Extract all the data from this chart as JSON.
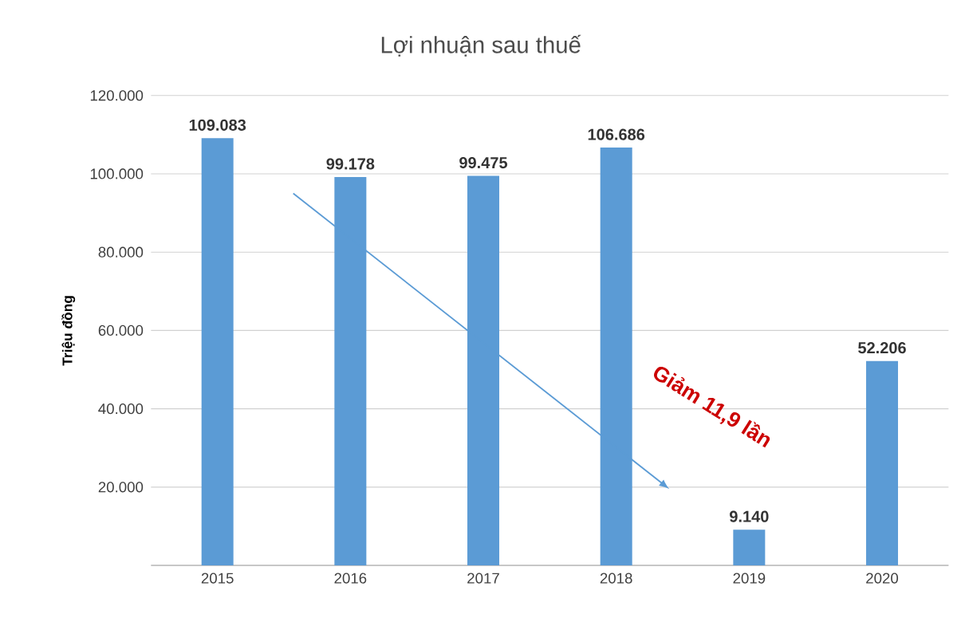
{
  "chart_data": {
    "type": "bar",
    "title": "Lợi nhuận sau thuế",
    "ylabel": "Triệu đồng",
    "categories": [
      "2015",
      "2016",
      "2017",
      "2018",
      "2019",
      "2020"
    ],
    "values": [
      109083,
      99178,
      99475,
      106686,
      9140,
      52206
    ],
    "value_labels": [
      "109.083",
      "99.178",
      "99.475",
      "106.686",
      "9.140",
      "52.206"
    ],
    "color": "#5b9bd5",
    "ylim": [
      0,
      120000
    ],
    "yticks": [
      {
        "value": 0,
        "label": null
      },
      {
        "value": 20000,
        "label": "20.000"
      },
      {
        "value": 40000,
        "label": "40.000"
      },
      {
        "value": 60000,
        "label": "60.000"
      },
      {
        "value": 80000,
        "label": "80.000"
      },
      {
        "value": 100000,
        "label": "100.000"
      },
      {
        "value": 120000,
        "label": "120.000"
      }
    ],
    "grid": true,
    "annotations": [
      "Giảm 11,9 lần"
    ]
  }
}
